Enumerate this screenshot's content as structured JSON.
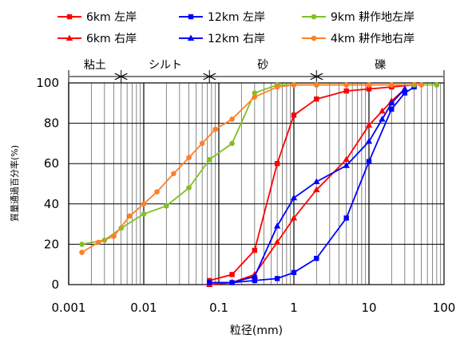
{
  "chart_data": {
    "type": "line",
    "xlabel": "粒径(mm)",
    "ylabel": "質量通過百分率(%)",
    "x_scale": "log",
    "xlim": [
      0.001,
      100
    ],
    "ylim": [
      0,
      100
    ],
    "x_ticks": [
      {
        "value": 0.001,
        "label": "0.001"
      },
      {
        "value": 0.01,
        "label": "0.01"
      },
      {
        "value": 0.1,
        "label": "0.1"
      },
      {
        "value": 1,
        "label": "1"
      },
      {
        "value": 10,
        "label": "10"
      },
      {
        "value": 100,
        "label": "100"
      }
    ],
    "y_ticks": [
      {
        "value": 0,
        "label": "0"
      },
      {
        "value": 20,
        "label": "20"
      },
      {
        "value": 40,
        "label": "40"
      },
      {
        "value": 60,
        "label": "60"
      },
      {
        "value": 80,
        "label": "80"
      },
      {
        "value": 100,
        "label": "100"
      }
    ],
    "grid": true,
    "legend_position": "top",
    "soil_classes": [
      {
        "label": "粘土",
        "from": 0.001,
        "to": 0.005
      },
      {
        "label": "シルト",
        "from": 0.005,
        "to": 0.075
      },
      {
        "label": "砂",
        "from": 0.075,
        "to": 2
      },
      {
        "label": "礫",
        "from": 2,
        "to": 100
      }
    ],
    "series": [
      {
        "name": "6km 左岸",
        "color": "#ff0000",
        "marker": "square",
        "x": [
          0.075,
          0.15,
          0.3,
          0.6,
          1.0,
          2.0,
          5.0,
          10,
          20,
          40
        ],
        "y": [
          2,
          5,
          17,
          60,
          84,
          92,
          96,
          97,
          98,
          99
        ]
      },
      {
        "name": "12km 左岸",
        "color": "#0000ff",
        "marker": "square",
        "x": [
          0.075,
          0.15,
          0.3,
          0.6,
          1.0,
          2.0,
          5.0,
          10,
          20,
          30,
          40
        ],
        "y": [
          1,
          1,
          2,
          3,
          6,
          13,
          33,
          61,
          87,
          95,
          98
        ]
      },
      {
        "name": "9km 耕作地左岸",
        "color": "#80c020",
        "marker": "circle",
        "x": [
          0.0015,
          0.003,
          0.005,
          0.01,
          0.02,
          0.04,
          0.075,
          0.15,
          0.3,
          0.6,
          1.0,
          2.0,
          5.0,
          10,
          20,
          40,
          80
        ],
        "y": [
          20,
          22,
          28,
          35,
          39,
          48,
          62,
          70,
          95,
          99,
          99,
          99,
          99,
          99,
          99,
          99,
          99
        ]
      },
      {
        "name": "6km 右岸",
        "color": "#ff0000",
        "marker": "triangle",
        "x": [
          0.075,
          0.15,
          0.3,
          0.6,
          1.0,
          2.0,
          5.0,
          10,
          15,
          20,
          30
        ],
        "y": [
          0,
          1,
          5,
          21,
          33,
          47,
          62,
          79,
          86,
          91,
          97
        ]
      },
      {
        "name": "12km 右岸",
        "color": "#0000ff",
        "marker": "triangle",
        "x": [
          0.075,
          0.15,
          0.3,
          0.6,
          1.0,
          2.0,
          5.0,
          10,
          15,
          20,
          30
        ],
        "y": [
          1,
          1,
          4,
          29,
          43,
          51,
          59,
          71,
          82,
          90,
          97
        ]
      },
      {
        "name": "4km 耕作地右岸",
        "color": "#ff7f27",
        "marker": "circle",
        "x": [
          0.0015,
          0.0025,
          0.004,
          0.0065,
          0.01,
          0.015,
          0.025,
          0.04,
          0.06,
          0.09,
          0.15,
          0.3,
          0.6,
          1.0,
          2.0,
          5.0,
          10,
          20,
          50
        ],
        "y": [
          16,
          21,
          24,
          34,
          40,
          46,
          55,
          63,
          70,
          77,
          82,
          93,
          98,
          99,
          99,
          99,
          99,
          99,
          99
        ]
      }
    ]
  }
}
